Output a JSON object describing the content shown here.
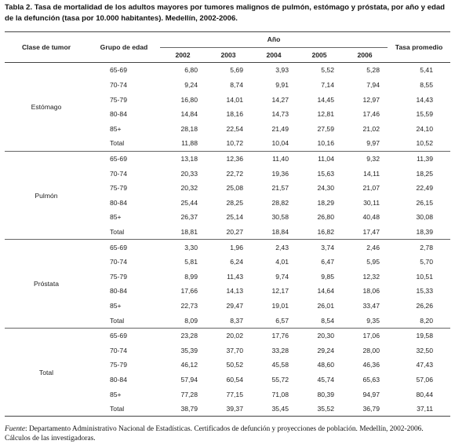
{
  "caption": {
    "label": "Tabla 2.",
    "text": "Tasa de mortalidad de los adultos mayores por tumores malignos de pulmón, estómago y próstata, por año y edad de la defunción (tasa por 10.000 habitantes). Medellín, 2002-2006."
  },
  "headers": {
    "tumor_class": "Clase de tumor",
    "age_group": "Grupo de edad",
    "year_group": "Año",
    "years": [
      "2002",
      "2003",
      "2004",
      "2005",
      "2006"
    ],
    "average": "Tasa promedio"
  },
  "groups": [
    {
      "name": "Estómago",
      "rows": [
        {
          "age": "65-69",
          "values": [
            "6,80",
            "5,69",
            "3,93",
            "5,52",
            "5,28"
          ],
          "avg": "5,41"
        },
        {
          "age": "70-74",
          "values": [
            "9,24",
            "8,74",
            "9,91",
            "7,14",
            "7,94"
          ],
          "avg": "8,55"
        },
        {
          "age": "75-79",
          "values": [
            "16,80",
            "14,01",
            "14,27",
            "14,45",
            "12,97"
          ],
          "avg": "14,43"
        },
        {
          "age": "80-84",
          "values": [
            "14,84",
            "18,16",
            "14,73",
            "12,81",
            "17,46"
          ],
          "avg": "15,59"
        },
        {
          "age": "85+",
          "values": [
            "28,18",
            "22,54",
            "21,49",
            "27,59",
            "21,02"
          ],
          "avg": "24,10"
        },
        {
          "age": "Total",
          "values": [
            "11,88",
            "10,72",
            "10,04",
            "10,16",
            "9,97"
          ],
          "avg": "10,52"
        }
      ]
    },
    {
      "name": "Pulmón",
      "rows": [
        {
          "age": "65-69",
          "values": [
            "13,18",
            "12,36",
            "11,40",
            "11,04",
            "9,32"
          ],
          "avg": "11,39"
        },
        {
          "age": "70-74",
          "values": [
            "20,33",
            "22,72",
            "19,36",
            "15,63",
            "14,11"
          ],
          "avg": "18,25"
        },
        {
          "age": "75-79",
          "values": [
            "20,32",
            "25,08",
            "21,57",
            "24,30",
            "21,07"
          ],
          "avg": "22,49"
        },
        {
          "age": "80-84",
          "values": [
            "25,44",
            "28,25",
            "28,82",
            "18,29",
            "30,11"
          ],
          "avg": "26,15"
        },
        {
          "age": "85+",
          "values": [
            "26,37",
            "25,14",
            "30,58",
            "26,80",
            "40,48"
          ],
          "avg": "30,08"
        },
        {
          "age": "Total",
          "values": [
            "18,81",
            "20,27",
            "18,84",
            "16,82",
            "17,47"
          ],
          "avg": "18,39"
        }
      ]
    },
    {
      "name": "Próstata",
      "rows": [
        {
          "age": "65-69",
          "values": [
            "3,30",
            "1,96",
            "2,43",
            "3,74",
            "2,46"
          ],
          "avg": "2,78"
        },
        {
          "age": "70-74",
          "values": [
            "5,81",
            "6,24",
            "4,01",
            "6,47",
            "5,95"
          ],
          "avg": "5,70"
        },
        {
          "age": "75-79",
          "values": [
            "8,99",
            "11,43",
            "9,74",
            "9,85",
            "12,32"
          ],
          "avg": "10,51"
        },
        {
          "age": "80-84",
          "values": [
            "17,66",
            "14,13",
            "12,17",
            "14,64",
            "18,06"
          ],
          "avg": "15,33"
        },
        {
          "age": "85+",
          "values": [
            "22,73",
            "29,47",
            "19,01",
            "26,01",
            "33,47"
          ],
          "avg": "26,26"
        },
        {
          "age": "Total",
          "values": [
            "8,09",
            "8,37",
            "6,57",
            "8,54",
            "9,35"
          ],
          "avg": "8,20"
        }
      ]
    },
    {
      "name": "Total",
      "rows": [
        {
          "age": "65-69",
          "values": [
            "23,28",
            "20,02",
            "17,76",
            "20,30",
            "17,06"
          ],
          "avg": "19,58"
        },
        {
          "age": "70-74",
          "values": [
            "35,39",
            "37,70",
            "33,28",
            "29,24",
            "28,00"
          ],
          "avg": "32,50"
        },
        {
          "age": "75-79",
          "values": [
            "46,12",
            "50,52",
            "45,58",
            "48,60",
            "46,36"
          ],
          "avg": "47,43"
        },
        {
          "age": "80-84",
          "values": [
            "57,94",
            "60,54",
            "55,72",
            "45,74",
            "65,63"
          ],
          "avg": "57,06"
        },
        {
          "age": "85+",
          "values": [
            "77,28",
            "77,15",
            "71,08",
            "80,39",
            "94,97"
          ],
          "avg": "80,44"
        },
        {
          "age": "Total",
          "values": [
            "38,79",
            "39,37",
            "35,45",
            "35,52",
            "36,79"
          ],
          "avg": "37,11"
        }
      ]
    }
  ],
  "source": {
    "lead": "Fuente",
    "text": ": Departamento Administrativo Nacional de Estadísticas. Certificados de defunción y proyecciones de población. Medellín, 2002-2006. Cálculos de las investigadoras."
  }
}
